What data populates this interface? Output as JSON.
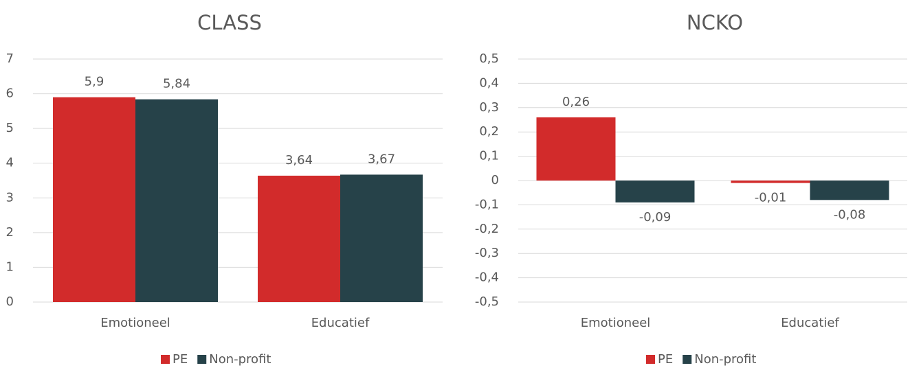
{
  "chart_data": [
    {
      "type": "bar",
      "title": "CLASS",
      "categories": [
        "Emotioneel",
        "Educatief"
      ],
      "series": [
        {
          "name": "PE",
          "color": "#d22b2b",
          "values": [
            5.9,
            3.64
          ],
          "value_labels": [
            "5,9",
            "3,64"
          ]
        },
        {
          "name": "Non-profit",
          "color": "#264249",
          "values": [
            5.84,
            3.67
          ],
          "value_labels": [
            "5,84",
            "3,67"
          ]
        }
      ],
      "ylim": [
        0,
        7
      ],
      "yticks": [
        0,
        1,
        2,
        3,
        4,
        5,
        6,
        7
      ],
      "grid": true,
      "legend": "bottom"
    },
    {
      "type": "bar",
      "title": "NCKO",
      "categories": [
        "Emotioneel",
        "Educatief"
      ],
      "series": [
        {
          "name": "PE",
          "color": "#d22b2b",
          "values": [
            0.26,
            -0.01
          ],
          "value_labels": [
            "0,26",
            "-0,01"
          ]
        },
        {
          "name": "Non-profit",
          "color": "#264249",
          "values": [
            -0.09,
            -0.08
          ],
          "value_labels": [
            "-0,09",
            "-0,08"
          ]
        }
      ],
      "ylim": [
        -0.5,
        0.5
      ],
      "yticks": [
        {
          "value": -0.5,
          "label": "-0,5"
        },
        {
          "value": -0.4,
          "label": "-0,4"
        },
        {
          "value": -0.3,
          "label": "-0,3"
        },
        {
          "value": -0.2,
          "label": "-0,2"
        },
        {
          "value": -0.1,
          "label": "-0,1"
        },
        0,
        {
          "value": 0.1,
          "label": "0,1"
        },
        {
          "value": 0.2,
          "label": "0,2"
        },
        {
          "value": 0.3,
          "label": "0,3"
        },
        {
          "value": 0.4,
          "label": "0,4"
        },
        {
          "value": 0.5,
          "label": "0,5"
        }
      ],
      "grid": true,
      "legend": "bottom"
    }
  ]
}
